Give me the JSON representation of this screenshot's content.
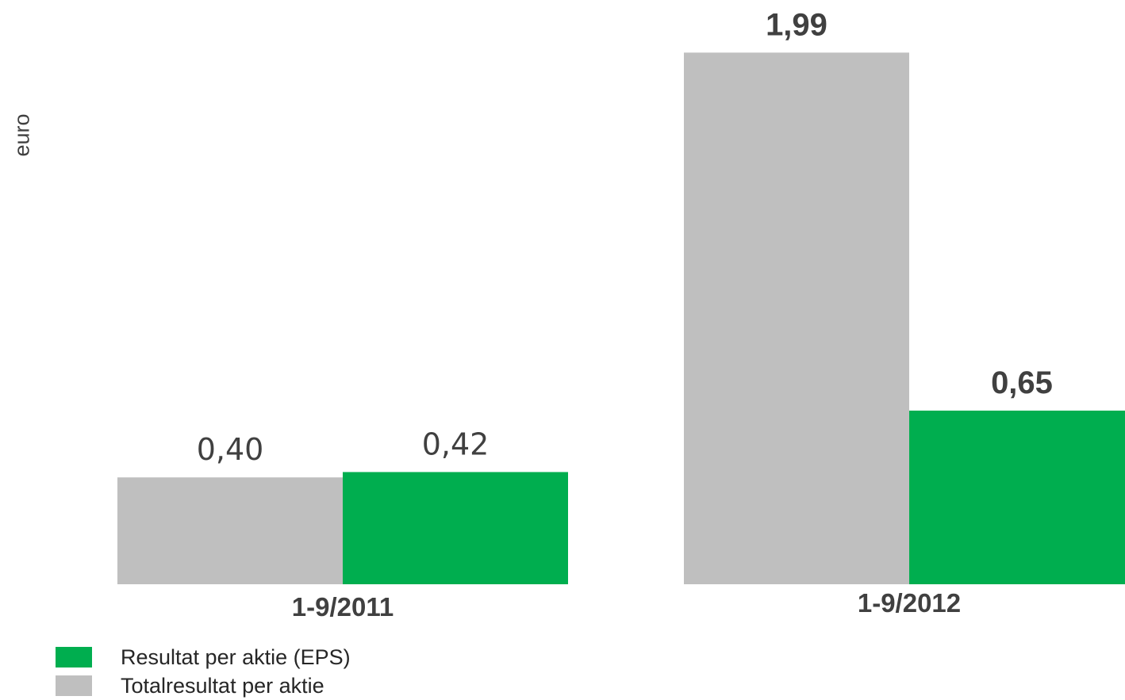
{
  "chart_data": {
    "type": "bar",
    "ylabel": "euro",
    "xlabel": "",
    "title": "",
    "ylim": [
      0,
      2.12
    ],
    "grid": false,
    "legend_position": "bottom-left",
    "categories": [
      "1-9/2011",
      "1-9/2012"
    ],
    "series": [
      {
        "name": "Totalresultat per aktie",
        "color": "#bfbfbf",
        "values": [
          0.4,
          1.99
        ],
        "value_labels": [
          "0,40",
          "1,99"
        ],
        "label_bold": [
          false,
          true
        ]
      },
      {
        "name": "Resultat per aktie (EPS)",
        "color": "#00ae4f",
        "values": [
          0.42,
          0.65
        ],
        "value_labels": [
          "0,42",
          "0,65"
        ],
        "label_bold": [
          false,
          true
        ]
      }
    ],
    "legend": [
      {
        "label": "Resultat per aktie (EPS)",
        "color": "#00ae4f"
      },
      {
        "label": "Totalresultat per aktie",
        "color": "#bfbfbf"
      }
    ]
  }
}
